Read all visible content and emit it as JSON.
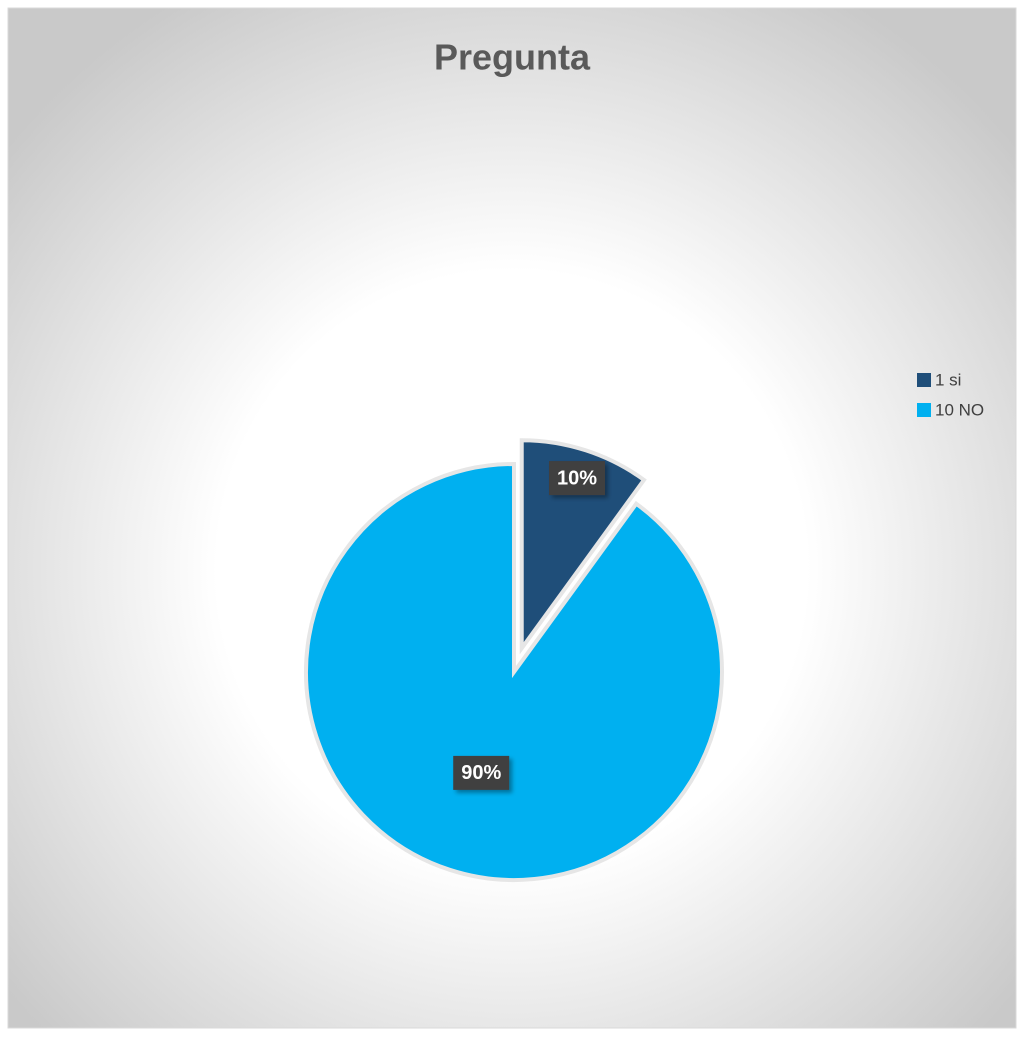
{
  "chart_data": {
    "type": "pie",
    "title": "Pregunta",
    "categories": [
      "1 si",
      "10 NO"
    ],
    "values": [
      10,
      90
    ],
    "value_labels": [
      "10%",
      "90%"
    ],
    "colors": [
      "#1f4e79",
      "#00b0f0"
    ],
    "legend": "right"
  }
}
